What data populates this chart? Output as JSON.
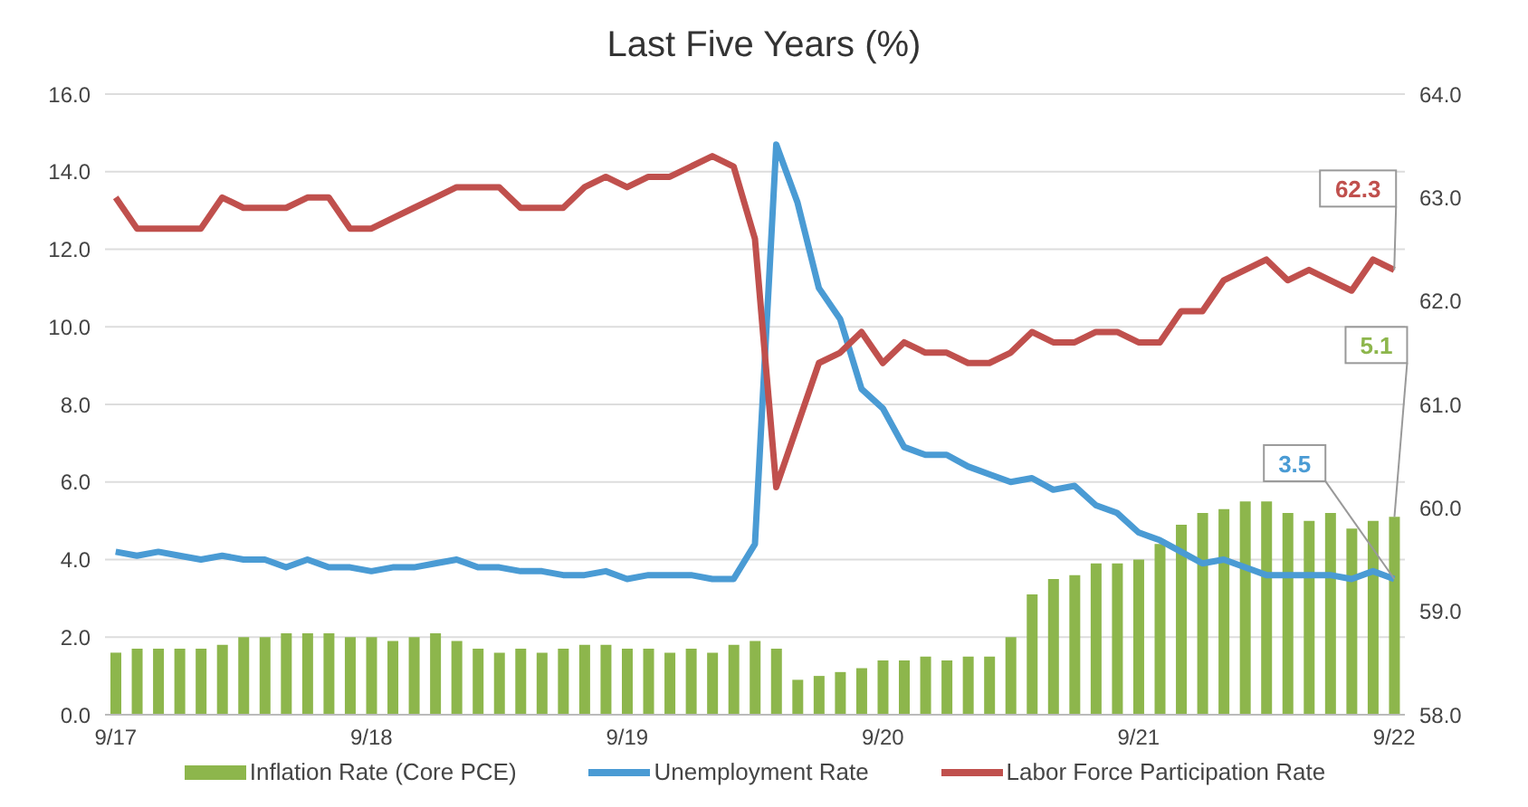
{
  "chart_data": {
    "type": "bar",
    "title": "Last Five Years (%)",
    "categories": [
      "9/17",
      null,
      null,
      null,
      null,
      null,
      null,
      null,
      null,
      null,
      null,
      null,
      "9/18",
      null,
      null,
      null,
      null,
      null,
      null,
      null,
      null,
      null,
      null,
      null,
      "9/19",
      null,
      null,
      null,
      null,
      null,
      null,
      null,
      null,
      null,
      null,
      null,
      "9/20",
      null,
      null,
      null,
      null,
      null,
      null,
      null,
      null,
      null,
      null,
      null,
      "9/21",
      null,
      null,
      null,
      null,
      null,
      null,
      null,
      null,
      null,
      null,
      null,
      "9/22"
    ],
    "series": [
      {
        "name": "Inflation Rate (Core PCE)",
        "color": "#8db64c",
        "values": [
          1.6,
          1.7,
          1.7,
          1.7,
          1.7,
          1.8,
          2.0,
          2.0,
          2.1,
          2.1,
          2.1,
          2.0,
          2.0,
          1.9,
          2.0,
          2.1,
          1.9,
          1.7,
          1.6,
          1.7,
          1.6,
          1.7,
          1.8,
          1.8,
          1.7,
          1.7,
          1.6,
          1.7,
          1.6,
          1.8,
          1.9,
          1.7,
          0.9,
          1.0,
          1.1,
          1.2,
          1.4,
          1.4,
          1.5,
          1.4,
          1.5,
          1.5,
          2.0,
          3.1,
          3.5,
          3.6,
          3.9,
          3.9,
          4.0,
          4.4,
          4.9,
          5.2,
          5.3,
          5.5,
          5.5,
          5.2,
          5.0,
          5.2,
          4.8,
          5.0,
          5.1
        ],
        "value_labels": [
          null,
          null,
          null,
          null,
          null,
          null,
          null,
          null,
          null,
          null,
          null,
          null,
          null,
          null,
          null,
          null,
          null,
          null,
          null,
          null,
          null,
          null,
          null,
          null,
          null,
          null,
          null,
          null,
          null,
          null,
          null,
          null,
          null,
          null,
          null,
          null,
          null,
          null,
          null,
          null,
          null,
          null,
          null,
          null,
          null,
          null,
          null,
          null,
          null,
          null,
          null,
          null,
          null,
          null,
          null,
          null,
          null,
          null,
          null,
          null,
          "5.1"
        ]
      },
      {
        "name": "Unemployment Rate",
        "type": "line",
        "color": "#4a9bd4",
        "values": [
          4.2,
          4.1,
          4.2,
          4.1,
          4.0,
          4.1,
          4.0,
          4.0,
          3.8,
          4.0,
          3.8,
          3.8,
          3.7,
          3.8,
          3.8,
          3.9,
          4.0,
          3.8,
          3.8,
          3.7,
          3.7,
          3.6,
          3.6,
          3.7,
          3.5,
          3.6,
          3.6,
          3.6,
          3.5,
          3.5,
          4.4,
          14.7,
          13.2,
          11.0,
          10.2,
          8.4,
          7.9,
          6.9,
          6.7,
          6.7,
          6.4,
          6.2,
          6.0,
          6.1,
          5.8,
          5.9,
          5.4,
          5.2,
          4.7,
          4.5,
          4.2,
          3.9,
          4.0,
          3.8,
          3.6,
          3.6,
          3.6,
          3.6,
          3.5,
          3.7,
          3.5
        ],
        "value_labels": [
          null,
          null,
          null,
          null,
          null,
          null,
          null,
          null,
          null,
          null,
          null,
          null,
          null,
          null,
          null,
          null,
          null,
          null,
          null,
          null,
          null,
          null,
          null,
          null,
          null,
          null,
          null,
          null,
          null,
          null,
          null,
          null,
          null,
          null,
          null,
          null,
          null,
          null,
          null,
          null,
          null,
          null,
          null,
          null,
          null,
          null,
          null,
          null,
          null,
          null,
          null,
          null,
          null,
          null,
          null,
          null,
          null,
          null,
          null,
          null,
          "3.5"
        ]
      },
      {
        "name": "Labor Force Participation Rate",
        "type": "line",
        "axis": "y2",
        "color": "#c0504d",
        "values": [
          63.0,
          62.7,
          62.7,
          62.7,
          62.7,
          63.0,
          62.9,
          62.9,
          62.9,
          63.0,
          63.0,
          62.7,
          62.7,
          62.8,
          62.9,
          63.0,
          63.1,
          63.1,
          63.1,
          62.9,
          62.9,
          62.9,
          63.1,
          63.2,
          63.1,
          63.2,
          63.2,
          63.3,
          63.4,
          63.3,
          62.6,
          60.2,
          60.8,
          61.4,
          61.5,
          61.7,
          61.4,
          61.6,
          61.5,
          61.5,
          61.4,
          61.4,
          61.5,
          61.7,
          61.6,
          61.6,
          61.7,
          61.7,
          61.6,
          61.6,
          61.9,
          61.9,
          62.2,
          62.3,
          62.4,
          62.2,
          62.3,
          62.2,
          62.1,
          62.4,
          62.3
        ],
        "value_labels": [
          null,
          null,
          null,
          null,
          null,
          null,
          null,
          null,
          null,
          null,
          null,
          null,
          null,
          null,
          null,
          null,
          null,
          null,
          null,
          null,
          null,
          null,
          null,
          null,
          null,
          null,
          null,
          null,
          null,
          null,
          null,
          null,
          null,
          null,
          null,
          null,
          null,
          null,
          null,
          null,
          null,
          null,
          null,
          null,
          null,
          null,
          null,
          null,
          null,
          null,
          null,
          null,
          null,
          null,
          null,
          null,
          null,
          null,
          null,
          null,
          "62.3"
        ]
      }
    ],
    "ylim": [
      0,
      16
    ],
    "yticks": [
      {
        "value": 0,
        "label": "0.0"
      },
      {
        "value": 2,
        "label": "2.0"
      },
      {
        "value": 4,
        "label": "4.0"
      },
      {
        "value": 6,
        "label": "6.0"
      },
      {
        "value": 8,
        "label": "8.0"
      },
      {
        "value": 10,
        "label": "10.0"
      },
      {
        "value": 12,
        "label": "12.0"
      },
      {
        "value": 14,
        "label": "14.0"
      },
      {
        "value": 16,
        "label": "16.0"
      }
    ],
    "y2lim": [
      58,
      64
    ],
    "y2ticks": [
      {
        "value": 58,
        "label": "58.0"
      },
      {
        "value": 59,
        "label": "59.0"
      },
      {
        "value": 60,
        "label": "60.0"
      },
      {
        "value": 61,
        "label": "61.0"
      },
      {
        "value": 62,
        "label": "62.0"
      },
      {
        "value": 63,
        "label": "63.0"
      },
      {
        "value": 64,
        "label": "64.0"
      }
    ],
    "grid": "y",
    "legend": "bottom",
    "marker": "none",
    "line_style": "solid"
  }
}
